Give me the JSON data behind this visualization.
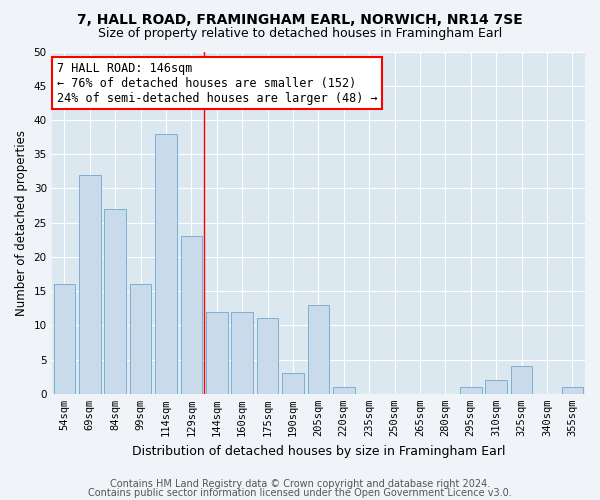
{
  "title1": "7, HALL ROAD, FRAMINGHAM EARL, NORWICH, NR14 7SE",
  "title2": "Size of property relative to detached houses in Framingham Earl",
  "xlabel": "Distribution of detached houses by size in Framingham Earl",
  "ylabel": "Number of detached properties",
  "categories": [
    "54sqm",
    "69sqm",
    "84sqm",
    "99sqm",
    "114sqm",
    "129sqm",
    "144sqm",
    "160sqm",
    "175sqm",
    "190sqm",
    "205sqm",
    "220sqm",
    "235sqm",
    "250sqm",
    "265sqm",
    "280sqm",
    "295sqm",
    "310sqm",
    "325sqm",
    "340sqm",
    "355sqm"
  ],
  "values": [
    16,
    32,
    27,
    16,
    38,
    23,
    12,
    12,
    11,
    3,
    13,
    1,
    0,
    0,
    0,
    0,
    1,
    2,
    4,
    0,
    1
  ],
  "bar_color": "#c9daea",
  "bar_edge_color": "#7bafd4",
  "annotation_title": "7 HALL ROAD: 146sqm",
  "annotation_line1": "← 76% of detached houses are smaller (152)",
  "annotation_line2": "24% of semi-detached houses are larger (48) →",
  "ylim": [
    0,
    50
  ],
  "yticks": [
    0,
    5,
    10,
    15,
    20,
    25,
    30,
    35,
    40,
    45,
    50
  ],
  "footer1": "Contains HM Land Registry data © Crown copyright and database right 2024.",
  "footer2": "Contains public sector information licensed under the Open Government Licence v3.0.",
  "fig_bg_color": "#f0f4f8",
  "plot_bg_color": "#dce8f0",
  "grid_color": "#ffffff",
  "title1_fontsize": 10,
  "title2_fontsize": 9,
  "axis_label_fontsize": 8.5,
  "tick_fontsize": 7.5,
  "annotation_fontsize": 8.5,
  "footer_fontsize": 7
}
